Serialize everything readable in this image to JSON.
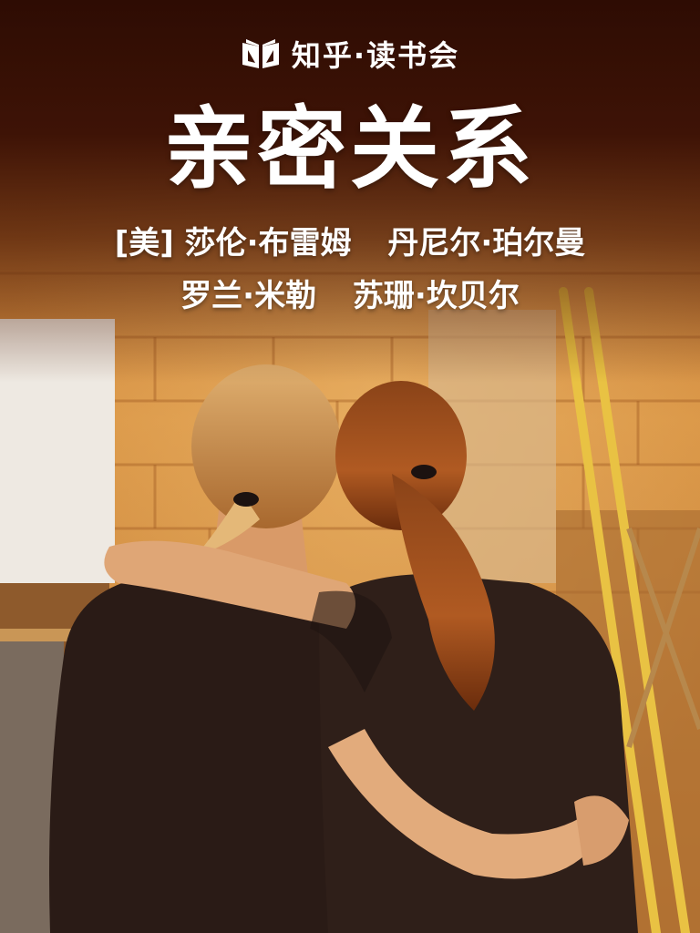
{
  "brand": {
    "name": "知乎·读书会",
    "icon": "open-book-icon"
  },
  "book": {
    "title": "亲密关系",
    "authors_line1": [
      "[美] 莎伦·布雷姆",
      "丹尼尔·珀尔曼"
    ],
    "authors_line2": [
      "罗兰·米勒",
      "苏珊·坎贝尔"
    ]
  },
  "colors": {
    "header_dark": "#2e0c03",
    "wall_orange": "#d9923c",
    "shirt_dark": "#2a1b16",
    "text": "#ffffff"
  },
  "illustration": "two-friends-hugging-photo"
}
